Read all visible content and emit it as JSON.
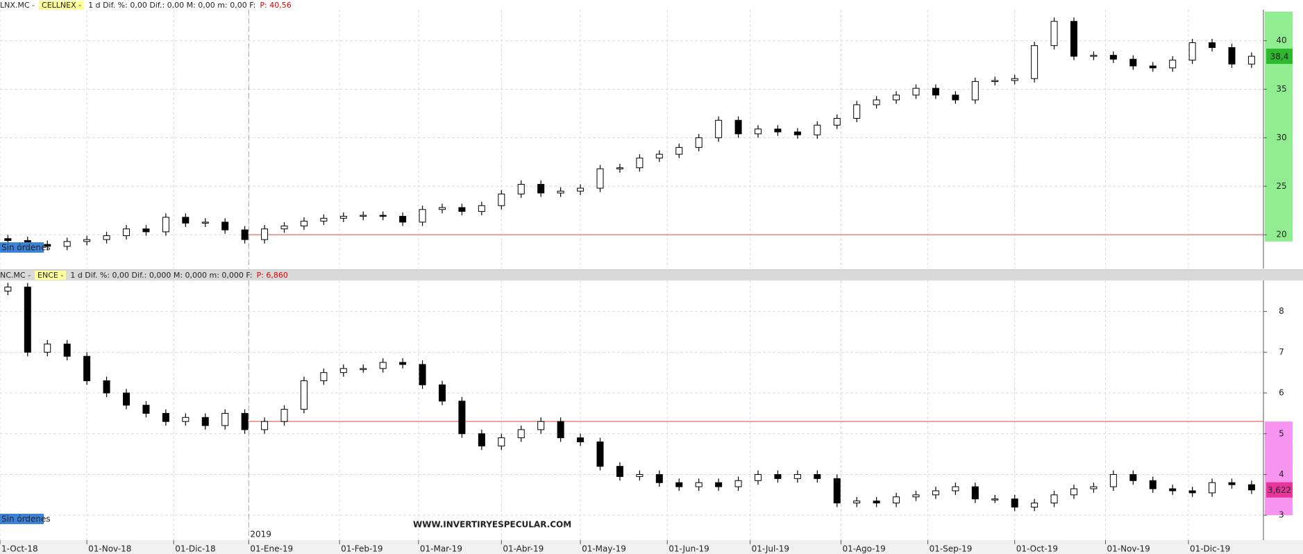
{
  "chart_data": [
    {
      "type": "candlestick",
      "symbol": "LNX.MC -",
      "name": "CELLNEX -",
      "info": "1 d  Dif. %: 0,00  Dif.: 0,00  M: 0,00  m: 0,00  F:",
      "price": "P: 40,56",
      "status": "Sin órdenes",
      "x": [
        2,
        7,
        12,
        17,
        22,
        27,
        32,
        37,
        42,
        47,
        52,
        57,
        62,
        67,
        72,
        77,
        82,
        87,
        92,
        97,
        102,
        107,
        112,
        117,
        122,
        127,
        132,
        137,
        142,
        147,
        152,
        157,
        162,
        167,
        172,
        177,
        182,
        187,
        192,
        197,
        202,
        207,
        212,
        217,
        222,
        227,
        232,
        237,
        242,
        247,
        252,
        257,
        262,
        267,
        272,
        277,
        282,
        287,
        292,
        297,
        302,
        307,
        312,
        317
      ],
      "open": [
        19.6,
        19.4,
        19.0,
        18.8,
        19.3,
        19.5,
        19.9,
        20.6,
        20.3,
        21.8,
        21.2,
        21.3,
        20.5,
        19.5,
        20.6,
        20.9,
        21.4,
        21.7,
        21.9,
        22.0,
        21.9,
        21.3,
        22.6,
        22.8,
        22.4,
        23.0,
        24.2,
        25.2,
        24.3,
        24.5,
        24.8,
        26.8,
        26.9,
        27.9,
        28.3,
        29.0,
        30.0,
        31.8,
        30.4,
        30.9,
        30.6,
        30.3,
        31.3,
        32.0,
        33.4,
        33.9,
        34.4,
        35.1,
        34.4,
        33.9,
        35.8,
        35.9,
        36.1,
        39.5,
        42.0,
        38.4,
        38.5,
        38.1,
        37.4,
        37.2,
        38.0,
        39.8,
        39.3,
        37.6
      ],
      "high": [
        20.0,
        19.8,
        19.4,
        19.7,
        19.9,
        20.3,
        21.0,
        21.0,
        22.2,
        22.2,
        21.7,
        21.7,
        20.9,
        21.0,
        21.3,
        21.8,
        22.1,
        22.3,
        22.4,
        22.4,
        22.3,
        23.0,
        23.2,
        23.2,
        23.4,
        24.6,
        25.6,
        25.6,
        24.9,
        25.2,
        27.2,
        27.3,
        28.3,
        28.7,
        29.4,
        30.4,
        32.2,
        32.2,
        31.3,
        31.3,
        31.0,
        31.7,
        32.4,
        33.8,
        34.3,
        34.8,
        35.5,
        35.5,
        34.8,
        36.2,
        36.3,
        36.5,
        39.9,
        42.4,
        42.4,
        38.9,
        38.9,
        38.5,
        37.8,
        38.4,
        40.2,
        40.2,
        39.7,
        38.8
      ],
      "low": [
        19.0,
        18.6,
        18.4,
        18.4,
        18.9,
        19.1,
        19.5,
        19.9,
        19.9,
        20.8,
        20.8,
        20.1,
        19.1,
        19.1,
        20.2,
        20.5,
        21.0,
        21.3,
        21.5,
        21.5,
        20.9,
        20.9,
        22.2,
        22.0,
        22.0,
        22.6,
        23.8,
        23.9,
        23.9,
        24.1,
        24.4,
        26.4,
        26.5,
        27.5,
        27.9,
        28.6,
        29.6,
        30.0,
        30.0,
        30.2,
        29.9,
        29.9,
        30.9,
        31.6,
        33.0,
        33.5,
        34.0,
        34.0,
        33.5,
        33.5,
        35.4,
        35.5,
        35.7,
        39.1,
        38.0,
        38.0,
        37.7,
        37.0,
        36.8,
        36.8,
        37.6,
        38.9,
        37.2,
        37.2
      ],
      "close": [
        19.4,
        19.0,
        18.8,
        19.3,
        19.5,
        19.9,
        20.6,
        20.3,
        21.8,
        21.2,
        21.3,
        20.5,
        19.5,
        20.6,
        20.9,
        21.4,
        21.7,
        21.9,
        22.0,
        21.9,
        21.3,
        22.6,
        22.8,
        22.4,
        23.0,
        24.2,
        25.2,
        24.3,
        24.5,
        24.8,
        26.8,
        26.9,
        27.9,
        28.3,
        29.0,
        30.0,
        31.8,
        30.4,
        30.9,
        30.6,
        30.3,
        31.3,
        32.0,
        33.4,
        33.9,
        34.4,
        35.1,
        34.4,
        33.9,
        35.8,
        35.9,
        36.1,
        39.5,
        42.0,
        38.4,
        38.5,
        38.1,
        37.4,
        37.2,
        38.0,
        39.8,
        39.3,
        37.6,
        38.4
      ],
      "up_color": "#ffffff",
      "down_color": "#000000",
      "ylim": [
        16.5,
        43.2
      ],
      "yticks": [
        20,
        25,
        30,
        35,
        40
      ],
      "grid": true,
      "hline": {
        "value": 20,
        "x_start": 63,
        "color": "#f08080"
      },
      "zone": [
        19.3,
        43.0
      ],
      "zone_color": "#90ee90",
      "last": {
        "value": 38.4,
        "label": "38,4"
      },
      "last_color": "#2db82d"
    },
    {
      "type": "candlestick",
      "symbol": "NC.MC -",
      "name": "ENCE -",
      "info": "1 d  Dif. %: 0,00  Dif.: 0,000  M: 0,000  m: 0,000  F:",
      "price": "P: 6,860",
      "status": "Sin órdenes",
      "x": [
        2,
        7,
        12,
        17,
        22,
        27,
        32,
        37,
        42,
        47,
        52,
        57,
        62,
        67,
        72,
        77,
        82,
        87,
        92,
        97,
        102,
        107,
        112,
        117,
        122,
        127,
        132,
        137,
        142,
        147,
        152,
        157,
        162,
        167,
        172,
        177,
        182,
        187,
        192,
        197,
        202,
        207,
        212,
        217,
        222,
        227,
        232,
        237,
        242,
        247,
        252,
        257,
        262,
        267,
        272,
        277,
        282,
        287,
        292,
        297,
        302,
        307,
        312,
        317
      ],
      "open": [
        8.5,
        8.6,
        7.0,
        7.2,
        6.9,
        6.3,
        6.0,
        5.7,
        5.5,
        5.3,
        5.4,
        5.2,
        5.5,
        5.1,
        5.3,
        5.6,
        6.3,
        6.5,
        6.6,
        6.6,
        6.75,
        6.7,
        6.2,
        5.8,
        5.0,
        4.7,
        4.9,
        5.1,
        5.3,
        4.9,
        4.8,
        4.2,
        3.95,
        4.0,
        3.8,
        3.7,
        3.8,
        3.7,
        3.85,
        4.0,
        3.9,
        4.0,
        3.9,
        3.3,
        3.35,
        3.3,
        3.45,
        3.5,
        3.6,
        3.7,
        3.4,
        3.4,
        3.2,
        3.3,
        3.5,
        3.65,
        3.7,
        4.0,
        3.85,
        3.65,
        3.6,
        3.55,
        3.8,
        3.75
      ],
      "high": [
        8.7,
        8.7,
        7.3,
        7.3,
        7.0,
        6.4,
        6.1,
        5.8,
        5.6,
        5.5,
        5.5,
        5.6,
        5.6,
        5.4,
        5.7,
        6.4,
        6.6,
        6.7,
        6.7,
        6.85,
        6.85,
        6.8,
        6.3,
        5.9,
        5.1,
        5.0,
        5.2,
        5.4,
        5.4,
        5.0,
        4.9,
        4.3,
        4.1,
        4.1,
        3.9,
        3.9,
        3.9,
        3.95,
        4.1,
        4.1,
        4.1,
        4.1,
        4.0,
        3.45,
        3.45,
        3.55,
        3.6,
        3.7,
        3.8,
        3.8,
        3.5,
        3.5,
        3.4,
        3.6,
        3.75,
        3.8,
        4.1,
        4.1,
        3.95,
        3.75,
        3.7,
        3.9,
        3.9,
        3.85
      ],
      "low": [
        8.4,
        6.9,
        6.9,
        6.8,
        6.2,
        5.9,
        5.6,
        5.4,
        5.2,
        5.2,
        5.1,
        5.1,
        5.0,
        5.0,
        5.2,
        5.5,
        6.2,
        6.4,
        6.5,
        6.5,
        6.6,
        6.1,
        5.7,
        4.9,
        4.6,
        4.6,
        4.8,
        5.0,
        4.8,
        4.7,
        4.1,
        3.85,
        3.85,
        3.7,
        3.6,
        3.6,
        3.6,
        3.6,
        3.75,
        3.8,
        3.8,
        3.8,
        3.2,
        3.2,
        3.2,
        3.2,
        3.35,
        3.4,
        3.5,
        3.3,
        3.3,
        3.1,
        3.1,
        3.2,
        3.4,
        3.55,
        3.6,
        3.75,
        3.55,
        3.5,
        3.45,
        3.45,
        3.65,
        3.52
      ],
      "close": [
        8.6,
        7.0,
        7.2,
        6.9,
        6.3,
        6.0,
        5.7,
        5.5,
        5.3,
        5.4,
        5.2,
        5.5,
        5.1,
        5.3,
        5.6,
        6.3,
        6.5,
        6.6,
        6.6,
        6.75,
        6.7,
        6.2,
        5.8,
        5.0,
        4.7,
        4.9,
        5.1,
        5.3,
        4.9,
        4.8,
        4.2,
        3.95,
        4.0,
        3.8,
        3.7,
        3.8,
        3.7,
        3.85,
        4.0,
        3.9,
        4.0,
        3.9,
        3.3,
        3.35,
        3.3,
        3.45,
        3.5,
        3.6,
        3.7,
        3.4,
        3.4,
        3.2,
        3.3,
        3.5,
        3.65,
        3.7,
        4.0,
        3.85,
        3.65,
        3.6,
        3.55,
        3.8,
        3.75,
        3.62
      ],
      "up_color": "#ffffff",
      "down_color": "#000000",
      "ylim": [
        2.39,
        8.76
      ],
      "yticks": [
        3,
        4,
        5,
        6,
        7,
        8
      ],
      "grid": true,
      "hline": {
        "value": 5.3,
        "x_start": 63,
        "color": "#f08080"
      },
      "zone": [
        3.0,
        5.3
      ],
      "zone_color": "#f794f0",
      "last": {
        "value": 3.622,
        "label": "3,622"
      },
      "last_color": "#e8359a"
    }
  ],
  "x_axis": {
    "xlim": [
      0,
      320
    ],
    "year_label": "2019",
    "xticks": [
      {
        "value": 0,
        "label": "1-Oct-18"
      },
      {
        "value": 22,
        "label": "01-Nov-18"
      },
      {
        "value": 44,
        "label": "01-Dic-18"
      },
      {
        "value": 63,
        "label": "01-Ene-19"
      },
      {
        "value": 86,
        "label": "01-Feb-19"
      },
      {
        "value": 106,
        "label": "01-Mar-19"
      },
      {
        "value": 127,
        "label": "01-Abr-19"
      },
      {
        "value": 147,
        "label": "01-May-19"
      },
      {
        "value": 169,
        "label": "01-Jun-19"
      },
      {
        "value": 190,
        "label": "01-Jul-19"
      },
      {
        "value": 213,
        "label": "01-Ago-19"
      },
      {
        "value": 235,
        "label": "01-Sep-19"
      },
      {
        "value": 257,
        "label": "01-Oct-19"
      },
      {
        "value": 280,
        "label": "01-Nov-19"
      },
      {
        "value": 301,
        "label": "01-Dic-19"
      }
    ]
  },
  "watermark": "WWW.INVERTIRYESPECULAR.COM"
}
